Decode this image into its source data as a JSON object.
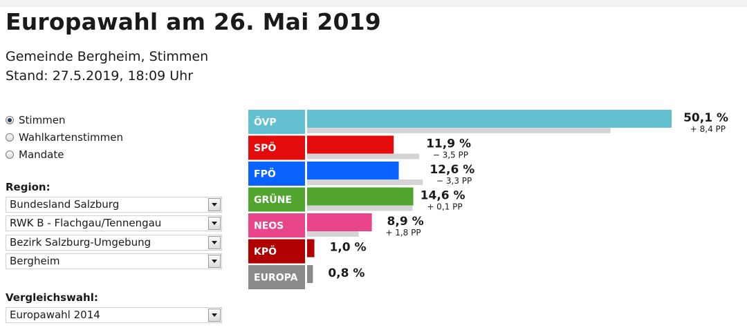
{
  "header": {
    "title": "Europawahl am 26. Mai 2019",
    "subtitle_line1": "Gemeinde Bergheim, Stimmen",
    "subtitle_line2": "Stand: 27.5.2019, 18:09 Uhr"
  },
  "view_options": [
    {
      "label": "Stimmen",
      "selected": true
    },
    {
      "label": "Wahlkartenstimmen",
      "selected": false
    },
    {
      "label": "Mandate",
      "selected": false
    }
  ],
  "region": {
    "label": "Region:",
    "selects": [
      "Bundesland Salzburg",
      "RWK B - Flachgau/Tennengau",
      "Bezirk Salzburg-Umgebung",
      "Bergheim"
    ]
  },
  "comparison": {
    "label": "Vergleichswahl:",
    "selected": "Europawahl 2014"
  },
  "chart_data": {
    "type": "bar",
    "orientation": "horizontal",
    "categories": [
      "ÖVP",
      "SPÖ",
      "FPÖ",
      "GRÜNE",
      "NEOS",
      "KPÖ",
      "EUROPA"
    ],
    "series": [
      {
        "values": [
          50.1,
          11.9,
          12.6,
          14.6,
          8.9,
          1.0,
          0.8
        ]
      },
      {
        "values": [
          41.7,
          15.4,
          15.9,
          14.5,
          7.1,
          null,
          null
        ]
      }
    ],
    "value_labels": [
      "50,1 %",
      "11,9 %",
      "12,6 %",
      "14,6 %",
      "8,9 %",
      "1,0 %",
      "0,8 %"
    ],
    "diff_labels": [
      "+ 8,4 PP",
      "− 3,5 PP",
      "− 3,3 PP",
      "+ 0,1 PP",
      "+ 1,8 PP",
      "",
      ""
    ],
    "colors": [
      "#62c0d0",
      "#e30b0b",
      "#0a63ff",
      "#51a42d",
      "#e8458b",
      "#b00000",
      "#8a8a8a"
    ],
    "comparison_color": "#d4d4d4",
    "xlim": [
      0,
      50.1
    ]
  }
}
